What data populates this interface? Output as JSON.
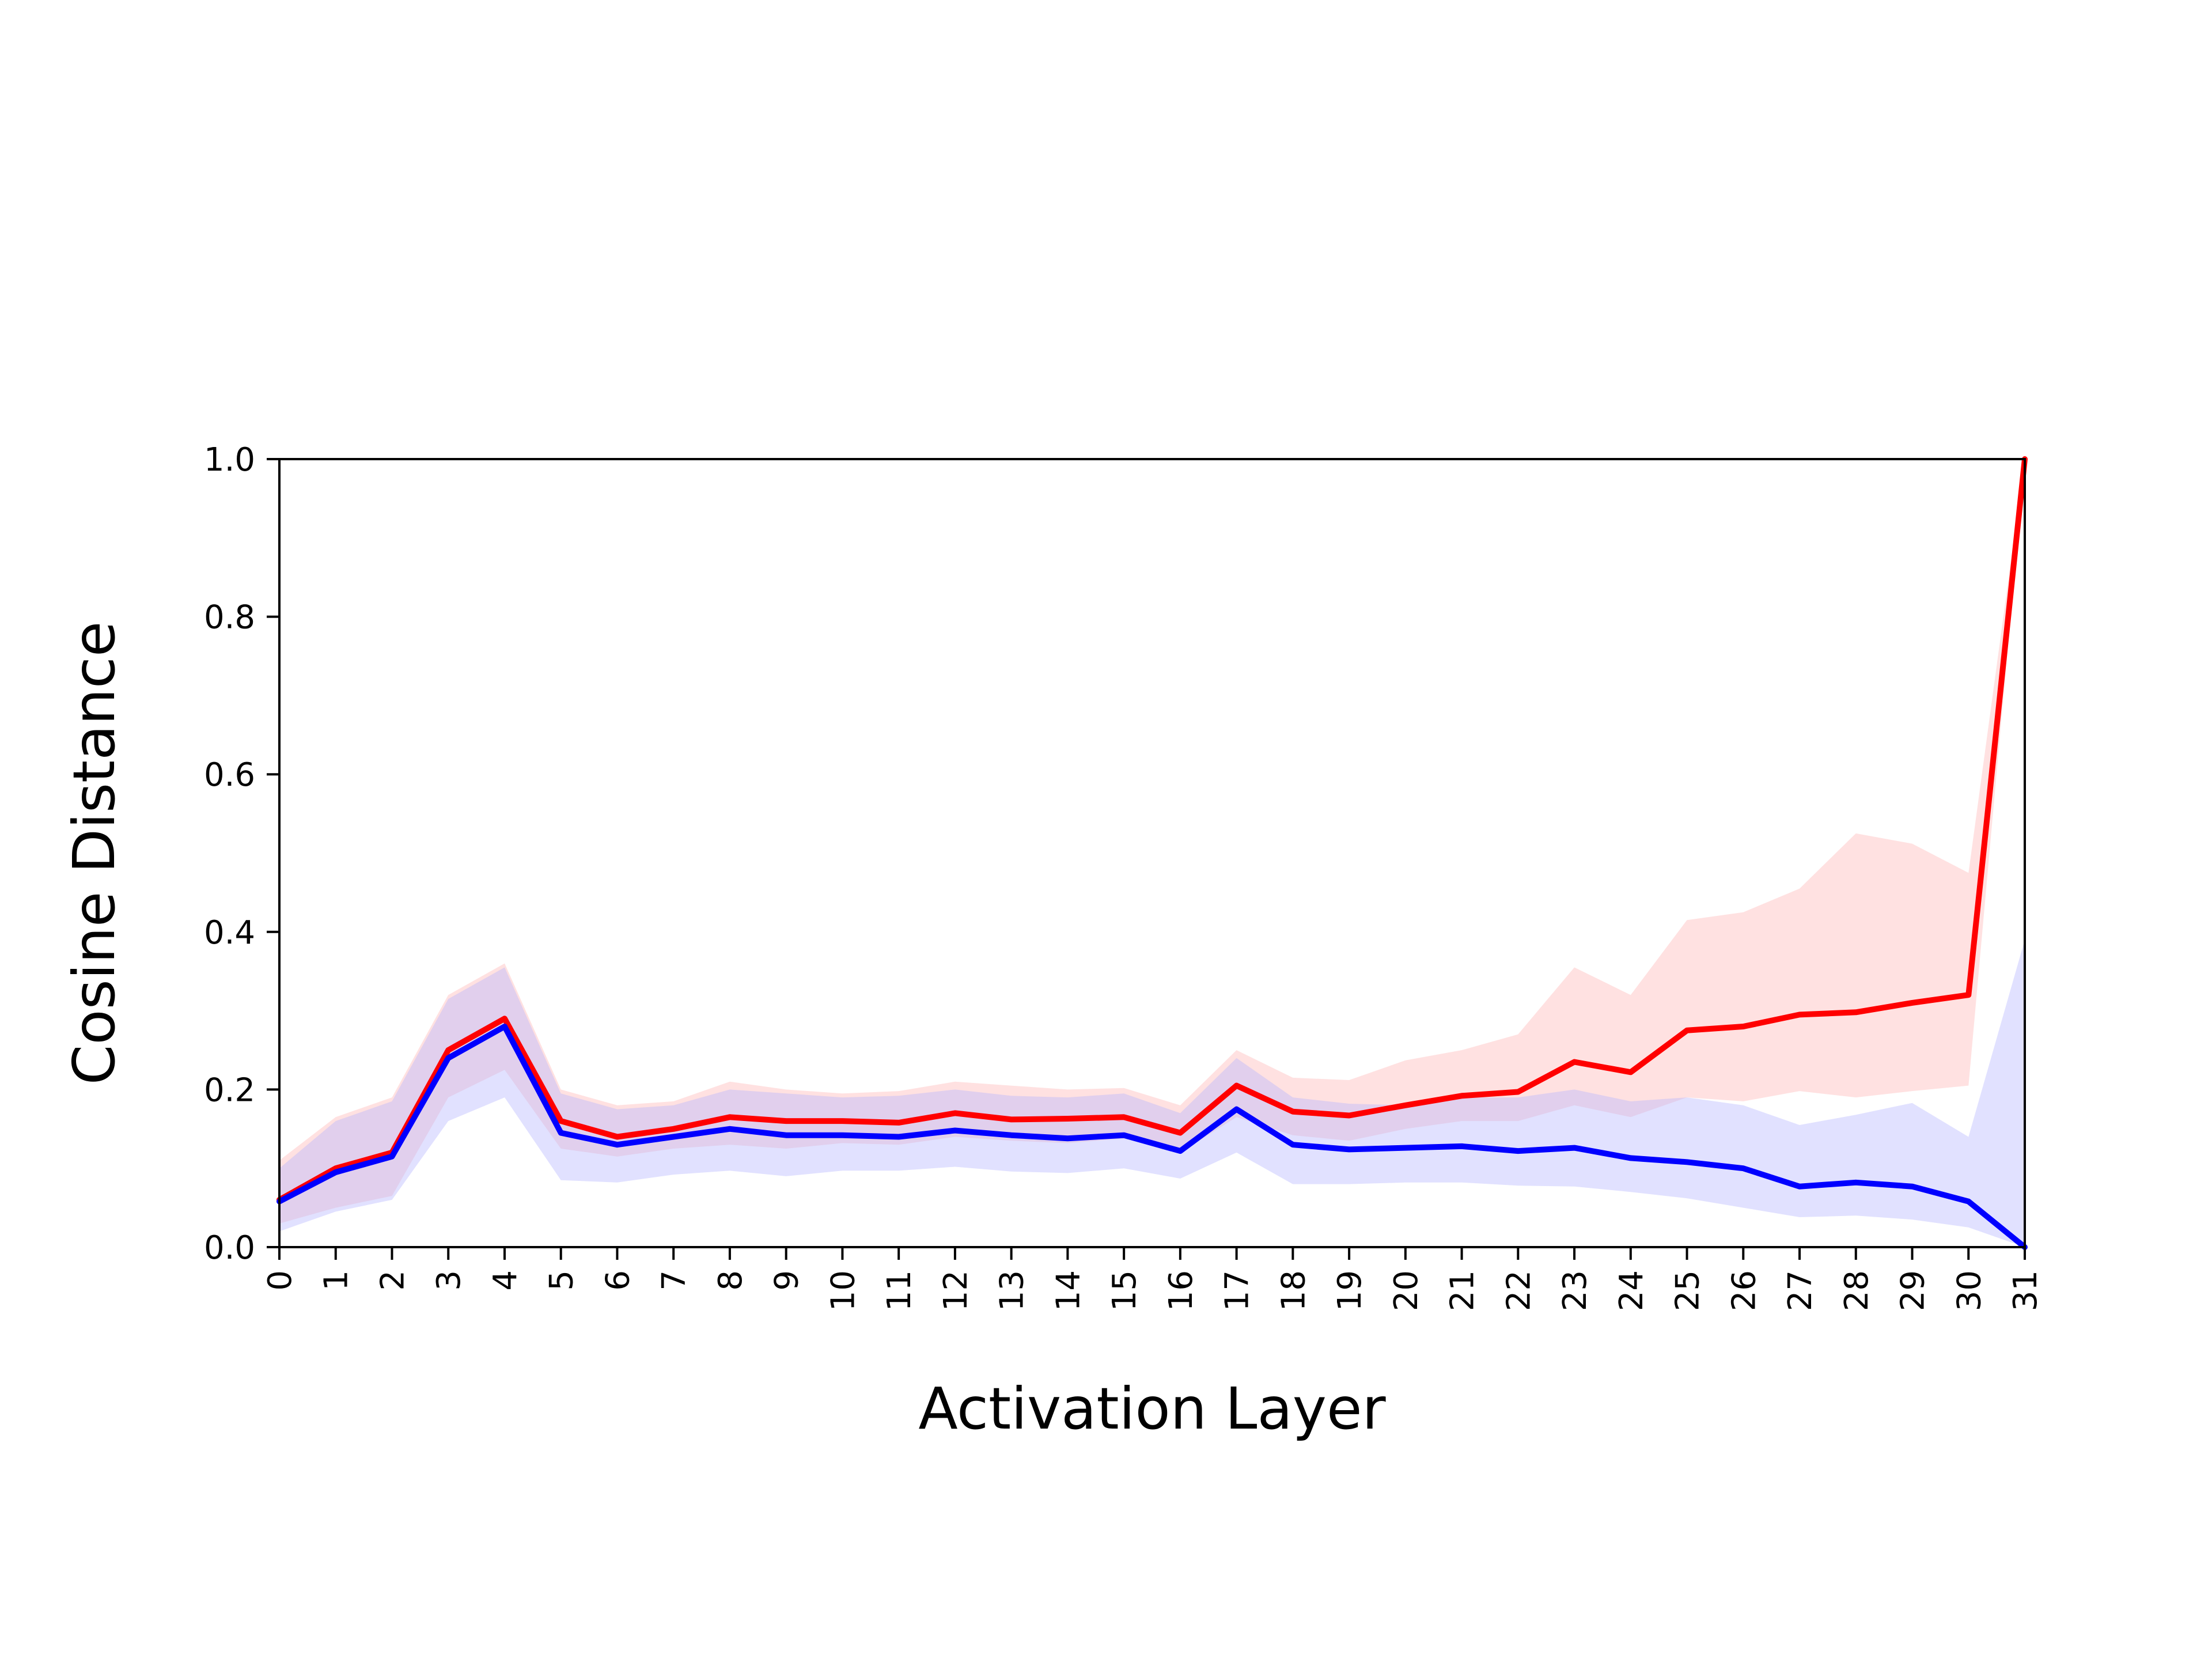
{
  "chart_data": {
    "type": "line",
    "title": "",
    "xlabel": "Activation Layer",
    "ylabel": "Cosine Distance",
    "xlim": [
      0,
      31
    ],
    "ylim": [
      0,
      1.0
    ],
    "x": [
      0,
      1,
      2,
      3,
      4,
      5,
      6,
      7,
      8,
      9,
      10,
      11,
      12,
      13,
      14,
      15,
      16,
      17,
      18,
      19,
      20,
      21,
      22,
      23,
      24,
      25,
      26,
      27,
      28,
      29,
      30,
      31
    ],
    "x_tick_labels": [
      "0",
      "1",
      "2",
      "3",
      "4",
      "5",
      "6",
      "7",
      "8",
      "9",
      "10",
      "11",
      "12",
      "13",
      "14",
      "15",
      "16",
      "17",
      "18",
      "19",
      "20",
      "21",
      "22",
      "23",
      "24",
      "25",
      "26",
      "27",
      "28",
      "29",
      "30",
      "31"
    ],
    "y_ticks": [
      0.0,
      0.2,
      0.4,
      0.6,
      0.8,
      1.0
    ],
    "y_tick_labels": [
      "0.0",
      "0.2",
      "0.4",
      "0.6",
      "0.8",
      "1.0"
    ],
    "grid": false,
    "series": [
      {
        "color": "#ff0000",
        "band_color": "#ffb3b3",
        "values": [
          0.06,
          0.1,
          0.12,
          0.25,
          0.29,
          0.16,
          0.14,
          0.15,
          0.165,
          0.16,
          0.16,
          0.158,
          0.17,
          0.162,
          0.163,
          0.165,
          0.145,
          0.205,
          0.172,
          0.167,
          0.18,
          0.192,
          0.197,
          0.235,
          0.222,
          0.275,
          0.28,
          0.295,
          0.298,
          0.31,
          0.32,
          1.0
        ],
        "upper": [
          0.11,
          0.165,
          0.19,
          0.32,
          0.36,
          0.2,
          0.18,
          0.185,
          0.21,
          0.2,
          0.195,
          0.198,
          0.21,
          0.205,
          0.2,
          0.202,
          0.18,
          0.25,
          0.215,
          0.212,
          0.237,
          0.25,
          0.27,
          0.355,
          0.32,
          0.415,
          0.425,
          0.455,
          0.525,
          0.512,
          0.475,
          1.0
        ],
        "lower": [
          0.03,
          0.05,
          0.065,
          0.19,
          0.225,
          0.125,
          0.115,
          0.125,
          0.13,
          0.125,
          0.132,
          0.13,
          0.14,
          0.135,
          0.132,
          0.138,
          0.12,
          0.165,
          0.142,
          0.135,
          0.15,
          0.16,
          0.16,
          0.18,
          0.165,
          0.19,
          0.185,
          0.198,
          0.19,
          0.198,
          0.205,
          1.0
        ]
      },
      {
        "color": "#0000ff",
        "band_color": "#b3b3ff",
        "values": [
          0.058,
          0.095,
          0.115,
          0.24,
          0.28,
          0.145,
          0.13,
          0.14,
          0.15,
          0.142,
          0.142,
          0.14,
          0.148,
          0.142,
          0.138,
          0.142,
          0.122,
          0.175,
          0.13,
          0.124,
          0.126,
          0.128,
          0.122,
          0.126,
          0.113,
          0.108,
          0.1,
          0.077,
          0.082,
          0.077,
          0.058,
          0.0
        ],
        "upper": [
          0.1,
          0.16,
          0.185,
          0.315,
          0.355,
          0.195,
          0.175,
          0.18,
          0.2,
          0.195,
          0.19,
          0.192,
          0.2,
          0.192,
          0.19,
          0.195,
          0.17,
          0.24,
          0.19,
          0.182,
          0.18,
          0.19,
          0.19,
          0.2,
          0.185,
          0.19,
          0.18,
          0.155,
          0.168,
          0.183,
          0.14,
          0.39
        ],
        "lower": [
          0.02,
          0.045,
          0.06,
          0.16,
          0.19,
          0.085,
          0.082,
          0.092,
          0.097,
          0.09,
          0.097,
          0.097,
          0.102,
          0.096,
          0.094,
          0.1,
          0.087,
          0.12,
          0.08,
          0.08,
          0.082,
          0.082,
          0.078,
          0.077,
          0.07,
          0.062,
          0.05,
          0.038,
          0.04,
          0.035,
          0.025,
          0.0
        ]
      }
    ]
  }
}
